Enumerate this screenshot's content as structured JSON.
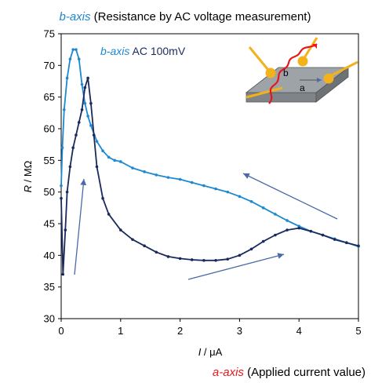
{
  "chart_data": {
    "type": "line",
    "top_caption": {
      "axis": "b-axis",
      "rest": " (Resistance by AC voltage measurement)"
    },
    "bottom_caption": {
      "axis": "a-axis",
      "rest": " (Applied current value)"
    },
    "legend": {
      "axis": "b-axis",
      "rest": "AC 100mV"
    },
    "xlabel": {
      "var": "I",
      "unit": " / μA"
    },
    "ylabel": {
      "var": "R",
      "unit": " / MΩ"
    },
    "xlim": [
      0,
      5
    ],
    "ylim": [
      30,
      75
    ],
    "xticks": [
      "0",
      "1",
      "2",
      "3",
      "4",
      "5"
    ],
    "yticks": [
      "30",
      "35",
      "40",
      "45",
      "50",
      "55",
      "60",
      "65",
      "70",
      "75"
    ],
    "inset": {
      "label_a": "a",
      "label_b": "b"
    },
    "colors": {
      "light_blue": "#1E88D0",
      "dark_blue": "#1B2A5E",
      "red": "#E8151B",
      "plate": "#9EA3A8",
      "lead": "#F2B21B",
      "arrow": "#4A6AA8"
    },
    "series": [
      {
        "color": "light_blue",
        "x": [
          0,
          0.02,
          0.05,
          0.1,
          0.15,
          0.2,
          0.25,
          0.3,
          0.35,
          0.4,
          0.45,
          0.5,
          0.6,
          0.7,
          0.8,
          0.9,
          1.0,
          1.2,
          1.4,
          1.6,
          1.8,
          2.0,
          2.2,
          2.4,
          2.6,
          2.8,
          3.0,
          3.2,
          3.4,
          3.6,
          3.8,
          4.0,
          4.2,
          4.4,
          4.6,
          4.8,
          5.0
        ],
        "y": [
          51,
          57,
          63,
          68,
          71,
          72.5,
          72.5,
          71,
          67,
          64,
          62,
          60.5,
          58,
          56.5,
          55.5,
          55,
          54.8,
          53.8,
          53.2,
          52.7,
          52.3,
          52,
          51.5,
          51,
          50.5,
          50,
          49.3,
          48.5,
          47.5,
          46.5,
          45.5,
          44.6,
          43.8,
          43.2,
          42.6,
          42,
          41.4
        ]
      },
      {
        "color": "dark_blue",
        "x": [
          0,
          0.03,
          0.07,
          0.1,
          0.15,
          0.2,
          0.25,
          0.3,
          0.35,
          0.4,
          0.45,
          0.5,
          0.55,
          0.6,
          0.7,
          0.8,
          1.0,
          1.2,
          1.4,
          1.6,
          1.8,
          2.0,
          2.2,
          2.4,
          2.6,
          2.8,
          3.0,
          3.2,
          3.4,
          3.6,
          3.8,
          4.0,
          4.2,
          4.4,
          4.6,
          4.8,
          5.0
        ],
        "y": [
          49,
          37,
          44,
          50,
          54,
          57,
          59,
          61,
          63,
          66.5,
          68,
          64,
          59,
          54,
          49,
          46.5,
          44,
          42.5,
          41.5,
          40.5,
          39.8,
          39.5,
          39.3,
          39.2,
          39.2,
          39.4,
          40,
          41,
          42.2,
          43.2,
          44,
          44.3,
          43.8,
          43.2,
          42.5,
          42,
          41.5
        ]
      }
    ]
  }
}
